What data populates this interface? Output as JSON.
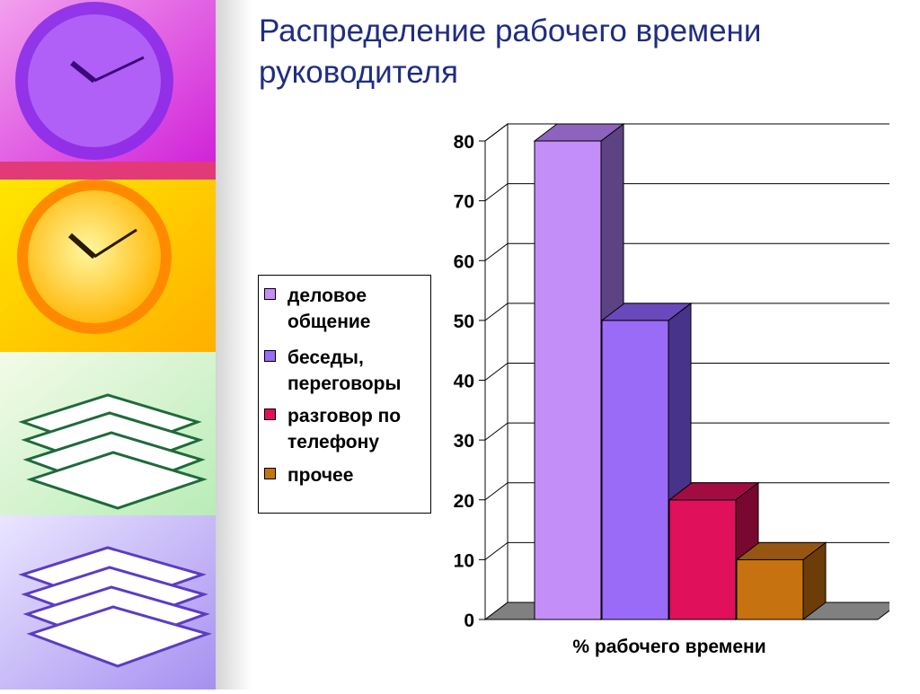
{
  "slide": {
    "title": "Распределение рабочего времени руководителя"
  },
  "chart_data": {
    "type": "bar",
    "title": "Распределение рабочего времени руководителя",
    "xlabel": "% рабочего времени",
    "ylabel": "",
    "ylim": [
      0,
      80
    ],
    "yticks": [
      "0",
      "10",
      "20",
      "30",
      "40",
      "50",
      "60",
      "70",
      "80"
    ],
    "series": [
      {
        "name": "деловое общение",
        "legend_label": "деловое\nобщение",
        "value": 80,
        "color": "#c38ef8",
        "side": "#5d4284",
        "top": "#8d63be"
      },
      {
        "name": "беседы, переговоры",
        "legend_label": "беседы,\nпереговоры",
        "value": 50,
        "color": "#9a6bf7",
        "side": "#47338a",
        "top": "#6a49bd"
      },
      {
        "name": "разговор по телефону",
        "legend_label": "разговор по\nтелефону",
        "value": 20,
        "color": "#e0105a",
        "side": "#78082f",
        "top": "#a20c41"
      },
      {
        "name": "прочее",
        "legend_label": "прочее",
        "value": 10,
        "color": "#c77210",
        "side": "#6c3d08",
        "top": "#965612"
      }
    ],
    "legend_position": "left",
    "grid": true
  },
  "theme": {
    "title_color": "#1f2d80",
    "floor_color": "#808080"
  }
}
